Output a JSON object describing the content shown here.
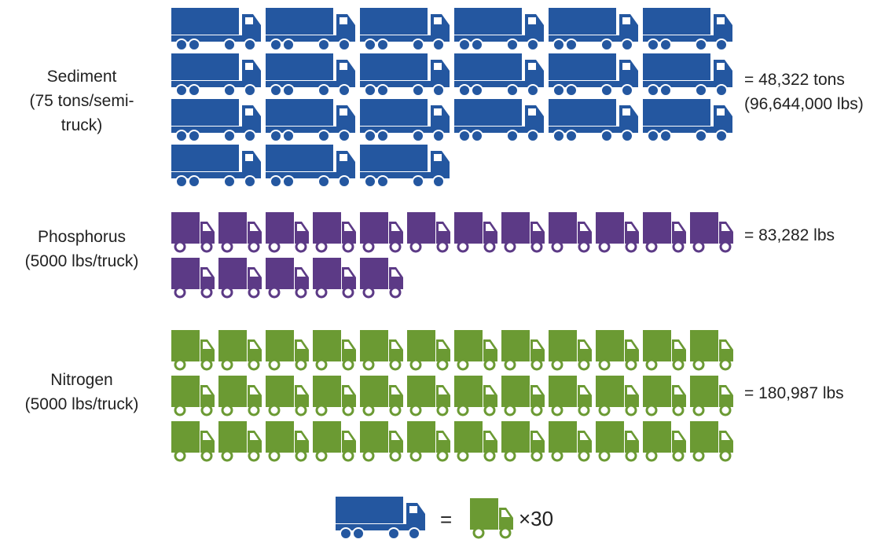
{
  "colors": {
    "sediment": "#2457a0",
    "phosphorus": "#5c3a86",
    "nitrogen": "#6b9a33"
  },
  "rows": [
    {
      "key": "sediment",
      "label_lines": [
        "Sediment",
        "(75 tons/semi-",
        "truck)"
      ],
      "result_lines": [
        "= 48,322 tons",
        "(96,644,000 lbs)"
      ],
      "icon": "semi-truck-icon",
      "count": 21
    },
    {
      "key": "phosphorus",
      "label_lines": [
        "Phosphorus",
        "(5000 lbs/truck)"
      ],
      "result_lines": [
        "= 83,282 lbs"
      ],
      "icon": "box-truck-icon",
      "count": 17
    },
    {
      "key": "nitrogen",
      "label_lines": [
        "Nitrogen",
        "(5000 lbs/truck)"
      ],
      "result_lines": [
        "= 180,987 lbs"
      ],
      "icon": "box-truck-icon",
      "count": 36
    }
  ],
  "legend": {
    "equals": "=",
    "multiplier": "×30"
  },
  "chart_data": {
    "type": "pictograph",
    "categories": [
      "Sediment",
      "Phosphorus",
      "Nitrogen"
    ],
    "values": [
      21,
      17,
      36
    ],
    "units": [
      "semi-trucks",
      "trucks",
      "trucks"
    ],
    "totals": [
      "48,322 tons (96,644,000 lbs)",
      "83,282 lbs",
      "180,987 lbs"
    ]
  }
}
